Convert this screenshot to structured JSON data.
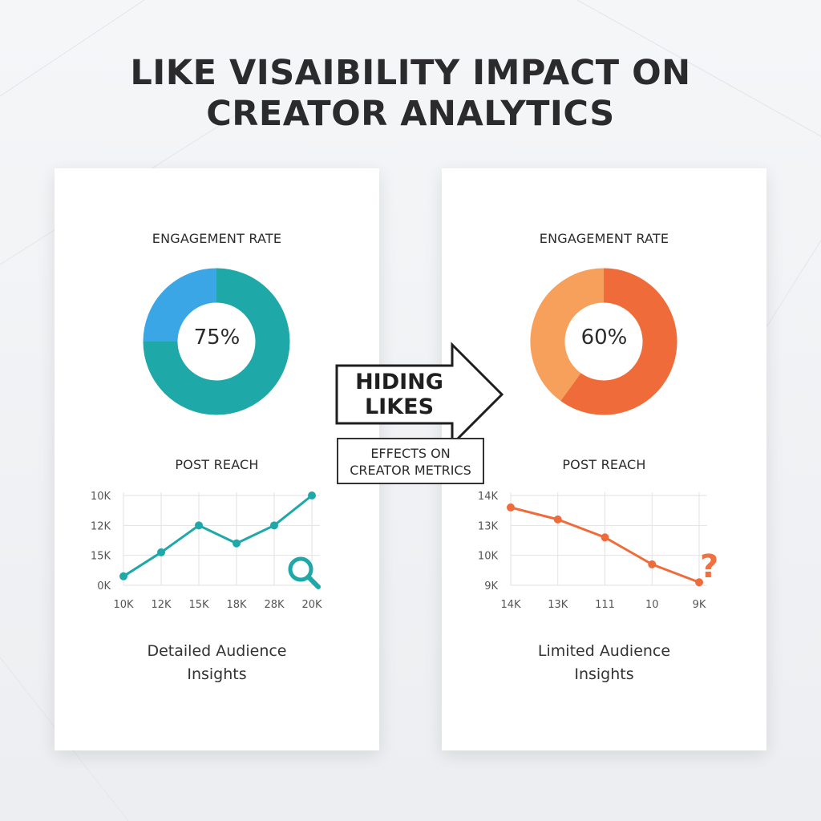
{
  "title_lines": [
    "LIKE VISAIBILITY IMPACT ON",
    "CREATOR ANALYTICS"
  ],
  "center": {
    "arrow_lines": [
      "HIDING",
      "LIKES"
    ],
    "effects_lines": [
      "EFFECTS ON",
      "CREATOR METRICS"
    ]
  },
  "colors": {
    "teal": "#1fa8a8",
    "blue": "#3ba6e6",
    "orange_light": "#f6a05c",
    "orange_dark": "#ef6c3a"
  },
  "chart_data": [
    {
      "type": "pie",
      "panel": "left",
      "title": "ENGAGEMENT RATE",
      "center_label": "75%",
      "value": 75,
      "colors": [
        "#1fa8a8",
        "#3ba6e6"
      ]
    },
    {
      "type": "line",
      "panel": "left",
      "title": "POST REACH",
      "categories": [
        "10K",
        "12K",
        "15K",
        "18K",
        "28K",
        "20K"
      ],
      "y_tick_labels": [
        "10K",
        "12K",
        "15K",
        "0K"
      ],
      "values": [
        0.3,
        1.1,
        2.0,
        1.4,
        2.0,
        3.0
      ],
      "ylim": [
        0,
        3
      ],
      "grid": true,
      "color": "#1fa8a8",
      "icon": "magnifier-icon",
      "caption": [
        "Detailed Audience",
        "Insights"
      ]
    },
    {
      "type": "pie",
      "panel": "right",
      "title": "ENGAGEMENT RATE",
      "center_label": "60%",
      "value": 60,
      "colors": [
        "#ef6c3a",
        "#f6a05c"
      ]
    },
    {
      "type": "line",
      "panel": "right",
      "title": "POST REACH",
      "categories": [
        "14K",
        "13K",
        "111",
        "10",
        "9K"
      ],
      "y_tick_labels": [
        "14K",
        "13K",
        "10K",
        "9K"
      ],
      "values": [
        2.6,
        2.2,
        1.6,
        0.7,
        0.1
      ],
      "ylim": [
        0,
        3
      ],
      "grid": true,
      "color": "#ef6c3a",
      "icon": "question-mark",
      "question_mark": "?",
      "caption": [
        "Limited Audience",
        "Insights"
      ]
    }
  ]
}
